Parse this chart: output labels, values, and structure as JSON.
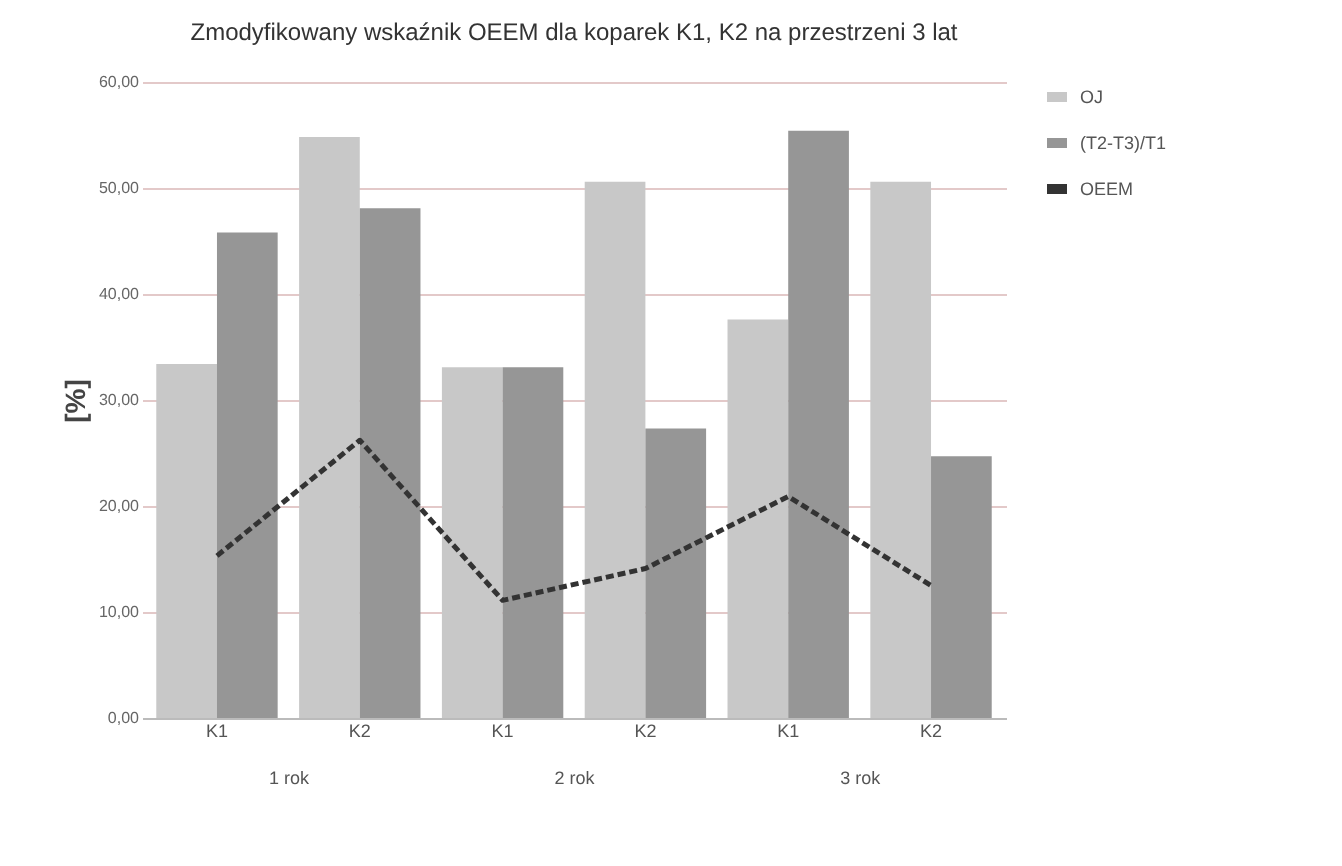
{
  "chart_data": {
    "type": "bar",
    "title": "Zmodyfikowany wskaźnik OEEM dla koparek K1, K2 na przestrzeni 3 lat",
    "ylabel": "[%]",
    "categories": [
      "K1",
      "K2",
      "K1",
      "K2",
      "K1",
      "K2"
    ],
    "series": [
      {
        "name": "OJ",
        "color": "#c8c8c8",
        "values": [
          33.4,
          54.8,
          33.1,
          50.6,
          37.6,
          50.6
        ]
      },
      {
        "name": "(T2-T3)/T1",
        "color": "#969696",
        "values": [
          45.8,
          48.1,
          33.1,
          27.3,
          55.4,
          24.7
        ]
      },
      {
        "name": "OEEM",
        "type": "line",
        "color": "#333333",
        "line_style": "dashed",
        "values": [
          15.3,
          26.2,
          11.1,
          14.1,
          20.9,
          12.5
        ]
      }
    ],
    "ylim": [
      0,
      60
    ],
    "yticks": [
      {
        "value": 0,
        "label": "0,00"
      },
      {
        "value": 10,
        "label": "10,00"
      },
      {
        "value": 20,
        "label": "20,00"
      },
      {
        "value": 30,
        "label": "30,00"
      },
      {
        "value": 40,
        "label": "40,00"
      },
      {
        "value": 50,
        "label": "50,00"
      },
      {
        "value": 60,
        "label": "60,00"
      }
    ],
    "grid": "y",
    "legend": "right",
    "marker": "none",
    "annotations": [
      "1 rok",
      "2 rok",
      "3 rok"
    ]
  }
}
